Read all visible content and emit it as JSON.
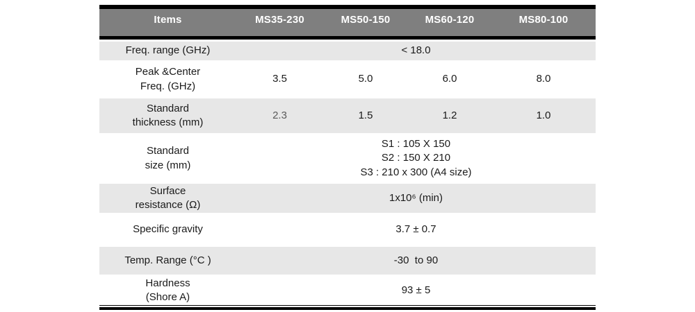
{
  "colors": {
    "header_bg": "#7f7f7f",
    "header_text": "#ffffff",
    "stripe_bg": "#e7e7e7",
    "row_bg": "#ffffff",
    "border": "#000000",
    "text": "#1a1a1a",
    "muted_value": "#595959"
  },
  "table": {
    "header": {
      "items_label": "Items",
      "columns": [
        "MS35-230",
        "MS50-150",
        "MS60-120",
        "MS80-100"
      ]
    },
    "rows": [
      {
        "label": "Freq. range (GHz)",
        "span_value": "< 18.0"
      },
      {
        "label": "Peak &Center\nFreq. (GHz)",
        "values": [
          "3.5",
          "5.0",
          "6.0",
          "8.0"
        ]
      },
      {
        "label": "Standard\nthickness (mm)",
        "values": [
          "2.3",
          "1.5",
          "1.2",
          "1.0"
        ]
      },
      {
        "label": "Standard\nsize (mm)",
        "span_value": "S1 : 105 X 150\nS2 : 150 X 210\nS3 : 210 x 300 (A4 size)"
      },
      {
        "label": "Surface\nresistance (Ω)",
        "span_value": "1x10⁶ (min)"
      },
      {
        "label": "Specific gravity",
        "span_value": "3.7 ± 0.7"
      },
      {
        "label": "Temp. Range (°C )",
        "span_value": "-30  to 90"
      },
      {
        "label": "Hardness\n(Shore A)",
        "span_value": "93 ± 5"
      }
    ]
  }
}
